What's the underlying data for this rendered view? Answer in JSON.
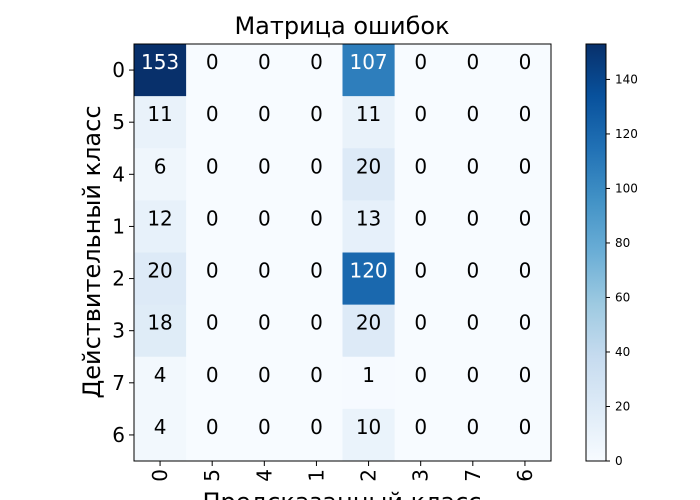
{
  "chart_data": {
    "type": "heatmap",
    "title": "Матрица ошибок",
    "xlabel": "Предсказанный класс",
    "ylabel": "Действительный класс",
    "x_categories": [
      "0",
      "5",
      "4",
      "1",
      "2",
      "3",
      "7",
      "6"
    ],
    "y_categories": [
      "0",
      "5",
      "4",
      "1",
      "2",
      "3",
      "7",
      "6"
    ],
    "values": [
      [
        153,
        0,
        0,
        0,
        107,
        0,
        0,
        0
      ],
      [
        11,
        0,
        0,
        0,
        11,
        0,
        0,
        0
      ],
      [
        6,
        0,
        0,
        0,
        20,
        0,
        0,
        0
      ],
      [
        12,
        0,
        0,
        0,
        13,
        0,
        0,
        0
      ],
      [
        20,
        0,
        0,
        0,
        120,
        0,
        0,
        0
      ],
      [
        18,
        0,
        0,
        0,
        20,
        0,
        0,
        0
      ],
      [
        4,
        0,
        0,
        0,
        1,
        0,
        0,
        0
      ],
      [
        4,
        0,
        0,
        0,
        10,
        0,
        0,
        0
      ]
    ],
    "colormap": "Blues",
    "color_min": "#f7fbff",
    "color_max": "#08306b",
    "colorbar_range": [
      0,
      153
    ],
    "colorbar_ticks": [
      0,
      20,
      40,
      60,
      80,
      100,
      120,
      140
    ]
  }
}
